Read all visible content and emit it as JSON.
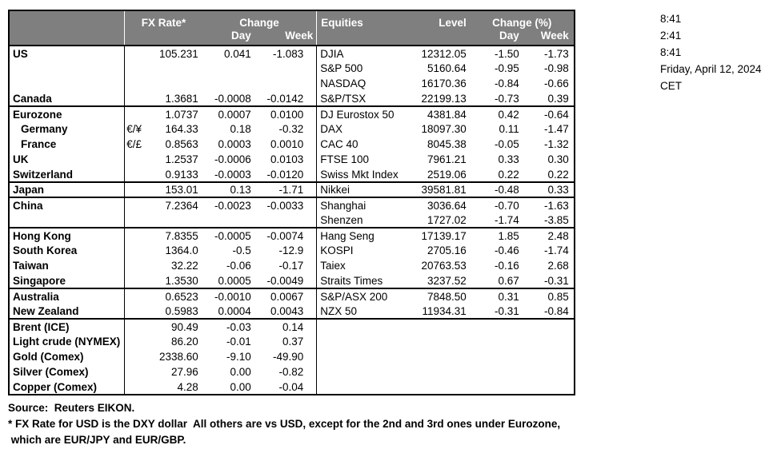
{
  "timestamps": {
    "lines": [
      "8:41",
      "2:41",
      "8:41",
      "Friday, April 12, 2024",
      "CET"
    ]
  },
  "table": {
    "fx_header": {
      "rate": "FX Rate*",
      "change": "Change",
      "day": "Day",
      "week": "Week"
    },
    "eq_header": {
      "title": "Equities",
      "level": "Level",
      "change_pct": "Change (%)",
      "day": "Day",
      "week": "Week"
    },
    "rows": [
      {
        "country": "US",
        "pair": "",
        "rate": "105.231",
        "day": "0.041",
        "week": "-1.083",
        "equity": "DJIA",
        "level": "12312.05",
        "eq_day": "-1.50",
        "eq_week": "-1.73",
        "indent": false,
        "group_end": false
      },
      {
        "country": "",
        "pair": "",
        "rate": "",
        "day": "",
        "week": "",
        "equity": "S&P 500",
        "level": "5160.64",
        "eq_day": "-0.95",
        "eq_week": "-0.98",
        "indent": false,
        "group_end": false
      },
      {
        "country": "",
        "pair": "",
        "rate": "",
        "day": "",
        "week": "",
        "equity": "NASDAQ",
        "level": "16170.36",
        "eq_day": "-0.84",
        "eq_week": "-0.66",
        "indent": false,
        "group_end": false
      },
      {
        "country": "Canada",
        "pair": "",
        "rate": "1.3681",
        "day": "-0.0008",
        "week": "-0.0142",
        "equity": "S&P/TSX",
        "level": "22199.13",
        "eq_day": "-0.73",
        "eq_week": "0.39",
        "indent": false,
        "group_end": true
      },
      {
        "country": "Eurozone",
        "pair": "",
        "rate": "1.0737",
        "day": "0.0007",
        "week": "0.0100",
        "equity": "DJ Eurostox 50",
        "level": "4381.84",
        "eq_day": "0.42",
        "eq_week": "-0.64",
        "indent": false,
        "group_end": false
      },
      {
        "country": "Germany",
        "pair": "€/¥",
        "rate": "164.33",
        "day": "0.18",
        "week": "-0.32",
        "equity": "DAX",
        "level": "18097.30",
        "eq_day": "0.11",
        "eq_week": "-1.47",
        "indent": true,
        "group_end": false
      },
      {
        "country": "France",
        "pair": "€/£",
        "rate": "0.8563",
        "day": "0.0003",
        "week": "0.0010",
        "equity": "CAC 40",
        "level": "8045.38",
        "eq_day": "-0.05",
        "eq_week": "-1.32",
        "indent": true,
        "group_end": false
      },
      {
        "country": "UK",
        "pair": "",
        "rate": "1.2537",
        "day": "-0.0006",
        "week": "0.0103",
        "equity": "FTSE 100",
        "level": "7961.21",
        "eq_day": "0.33",
        "eq_week": "0.30",
        "indent": false,
        "group_end": false
      },
      {
        "country": "Switzerland",
        "pair": "",
        "rate": "0.9133",
        "day": "-0.0003",
        "week": "-0.0120",
        "equity": "Swiss Mkt Index",
        "level": "2519.06",
        "eq_day": "0.22",
        "eq_week": "0.22",
        "indent": false,
        "group_end": true
      },
      {
        "country": "Japan",
        "pair": "",
        "rate": "153.01",
        "day": "0.13",
        "week": "-1.71",
        "equity": "Nikkei",
        "level": "39581.81",
        "eq_day": "-0.48",
        "eq_week": "0.33",
        "indent": false,
        "group_end": true
      },
      {
        "country": "China",
        "pair": "",
        "rate": "7.2364",
        "day": "-0.0023",
        "week": "-0.0033",
        "equity": "Shanghai",
        "level": "3036.64",
        "eq_day": "-0.70",
        "eq_week": "-1.63",
        "indent": false,
        "group_end": false
      },
      {
        "country": "",
        "pair": "",
        "rate": "",
        "day": "",
        "week": "",
        "equity": "Shenzen",
        "level": "1727.02",
        "eq_day": "-1.74",
        "eq_week": "-3.85",
        "indent": false,
        "group_end": true
      },
      {
        "country": "Hong Kong",
        "pair": "",
        "rate": "7.8355",
        "day": "-0.0005",
        "week": "-0.0074",
        "equity": "Hang Seng",
        "level": "17139.17",
        "eq_day": "1.85",
        "eq_week": "2.48",
        "indent": false,
        "group_end": false
      },
      {
        "country": "South Korea",
        "pair": "",
        "rate": "1364.0",
        "day": "-0.5",
        "week": "-12.9",
        "equity": "KOSPI",
        "level": "2705.16",
        "eq_day": "-0.46",
        "eq_week": "-1.74",
        "indent": false,
        "group_end": false
      },
      {
        "country": "Taiwan",
        "pair": "",
        "rate": "32.22",
        "day": "-0.06",
        "week": "-0.17",
        "equity": "Taiex",
        "level": "20763.53",
        "eq_day": "-0.16",
        "eq_week": "2.68",
        "indent": false,
        "group_end": false
      },
      {
        "country": "Singapore",
        "pair": "",
        "rate": "1.3530",
        "day": "0.0005",
        "week": "-0.0049",
        "equity": "Straits Times",
        "level": "3237.52",
        "eq_day": "0.67",
        "eq_week": "-0.31",
        "indent": false,
        "group_end": true
      },
      {
        "country": "Australia",
        "pair": "",
        "rate": "0.6523",
        "day": "-0.0010",
        "week": "0.0067",
        "equity": "S&P/ASX  200",
        "level": "7848.50",
        "eq_day": "0.31",
        "eq_week": "0.85",
        "indent": false,
        "group_end": false
      },
      {
        "country": "New Zealand",
        "pair": "",
        "rate": "0.5983",
        "day": "0.0004",
        "week": "0.0043",
        "equity": "NZX 50",
        "level": "11934.31",
        "eq_day": "-0.31",
        "eq_week": "-0.84",
        "indent": false,
        "group_end": true
      },
      {
        "country": "Brent (ICE)",
        "pair": "",
        "rate": "90.49",
        "day": "-0.03",
        "week": "0.14",
        "equity": "",
        "level": "",
        "eq_day": "",
        "eq_week": "",
        "indent": false,
        "group_end": false
      },
      {
        "country": "Light crude (NYMEX)",
        "pair": "",
        "rate": "86.20",
        "day": "-0.01",
        "week": "0.37",
        "equity": "",
        "level": "",
        "eq_day": "",
        "eq_week": "",
        "indent": false,
        "group_end": false
      },
      {
        "country": "Gold (Comex)",
        "pair": "",
        "rate": "2338.60",
        "day": "-9.10",
        "week": "-49.90",
        "equity": "",
        "level": "",
        "eq_day": "",
        "eq_week": "",
        "indent": false,
        "group_end": false
      },
      {
        "country": "Silver (Comex)",
        "pair": "",
        "rate": "27.96",
        "day": "0.00",
        "week": "-0.82",
        "equity": "",
        "level": "",
        "eq_day": "",
        "eq_week": "",
        "indent": false,
        "group_end": false
      },
      {
        "country": "Copper (Comex)",
        "pair": "",
        "rate": "4.28",
        "day": "0.00",
        "week": "-0.04",
        "equity": "",
        "level": "",
        "eq_day": "",
        "eq_week": "",
        "indent": false,
        "group_end": false
      }
    ]
  },
  "footer": {
    "source": "Source:  Reuters EIKON.",
    "note1": "* FX Rate for USD is the DXY dollar  All others are vs USD, except for the 2nd and 3rd ones under Eurozone,",
    "note2": " which are EUR/JPY and EUR/GBP."
  },
  "colors": {
    "header_bg": "#7f7f7f",
    "header_text": "#ffffff",
    "grid": "#000000"
  }
}
